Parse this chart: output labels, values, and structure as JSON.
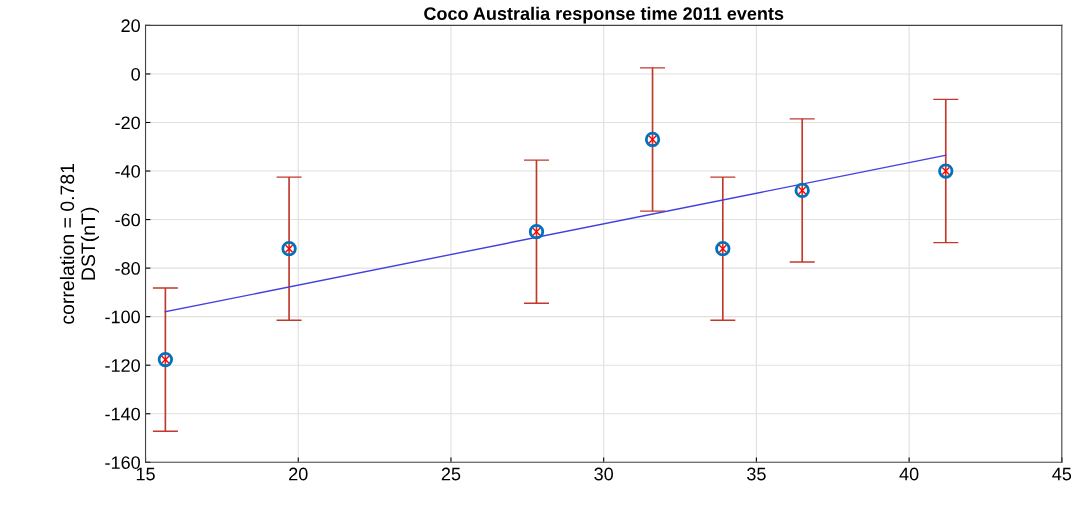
{
  "chart_data": {
    "type": "scatter",
    "title": "Coco Australia response time 2011 events",
    "ylabel": "correlation = 0.781\nDST(nT)",
    "xlim": [
      15,
      45
    ],
    "xticks": [
      15,
      20,
      25,
      30,
      35,
      40,
      45
    ],
    "ylim": [
      -160,
      20
    ],
    "yticks": [
      -160,
      -140,
      -120,
      -100,
      -80,
      -60,
      -40,
      -20,
      0,
      20
    ],
    "grid": true,
    "series": [
      {
        "marker": "circle",
        "color": "#0072bd",
        "x": [
          15.65,
          19.7,
          27.8,
          31.6,
          33.9,
          36.5,
          41.2
        ],
        "values": [
          -117.7,
          -72,
          -65,
          -27,
          -72,
          -48,
          -40
        ],
        "errors": [
          29.5,
          29.5,
          29.5,
          29.5,
          29.5,
          29.5,
          29.5
        ]
      },
      {
        "type": "line",
        "marker": "none",
        "color": "#4040e0",
        "x": [
          15.65,
          41.2
        ],
        "values": [
          -98,
          -33.5
        ]
      }
    ]
  }
}
